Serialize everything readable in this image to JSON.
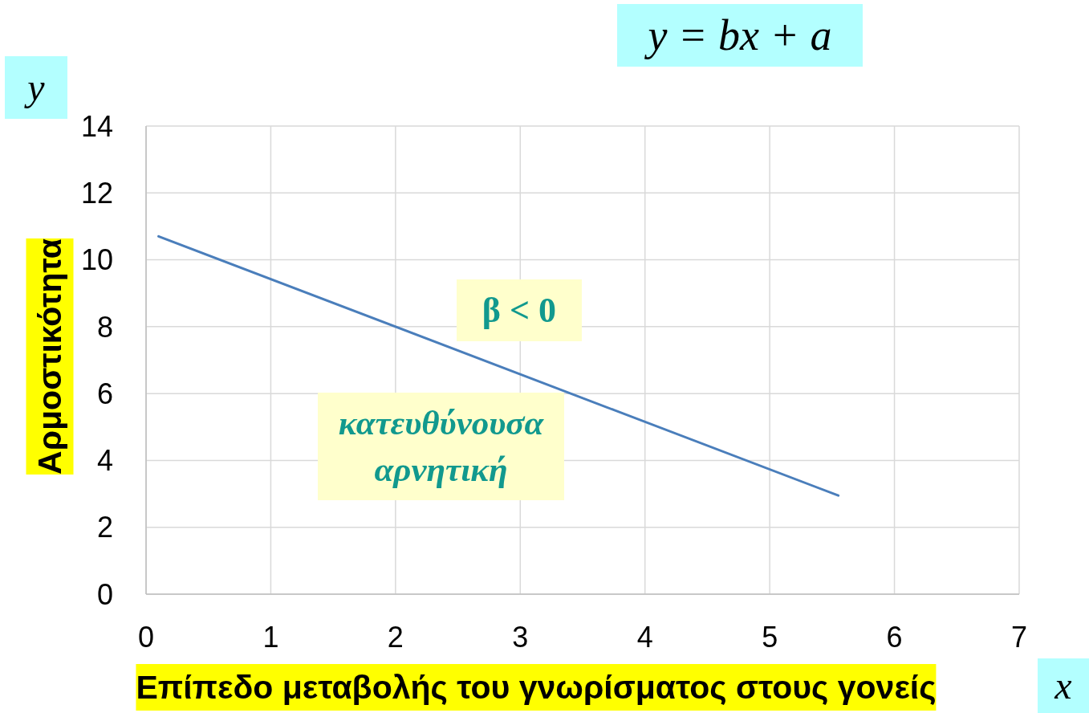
{
  "chart_data": {
    "type": "line",
    "title": "y = bx + a",
    "xlabel": "Επίπεδο μεταβολής του γνωρίσματος στους γονείς",
    "ylabel": "Αρμοστικότητα",
    "annotations": [
      "y",
      "x",
      "β < 0",
      "κατευθύνουσα αρνητική"
    ],
    "x": [
      0.1,
      5.55
    ],
    "series": [
      {
        "color": "#4a7ebb",
        "values": [
          10.7,
          2.95
        ]
      }
    ],
    "xlim": [
      0,
      7
    ],
    "xticks": [
      0,
      1,
      2,
      3,
      4,
      5,
      6,
      7
    ],
    "ylim": [
      0,
      14
    ],
    "yticks": [
      0,
      2,
      4,
      6,
      8,
      10,
      12,
      14
    ],
    "grid": true,
    "marker": "none"
  }
}
